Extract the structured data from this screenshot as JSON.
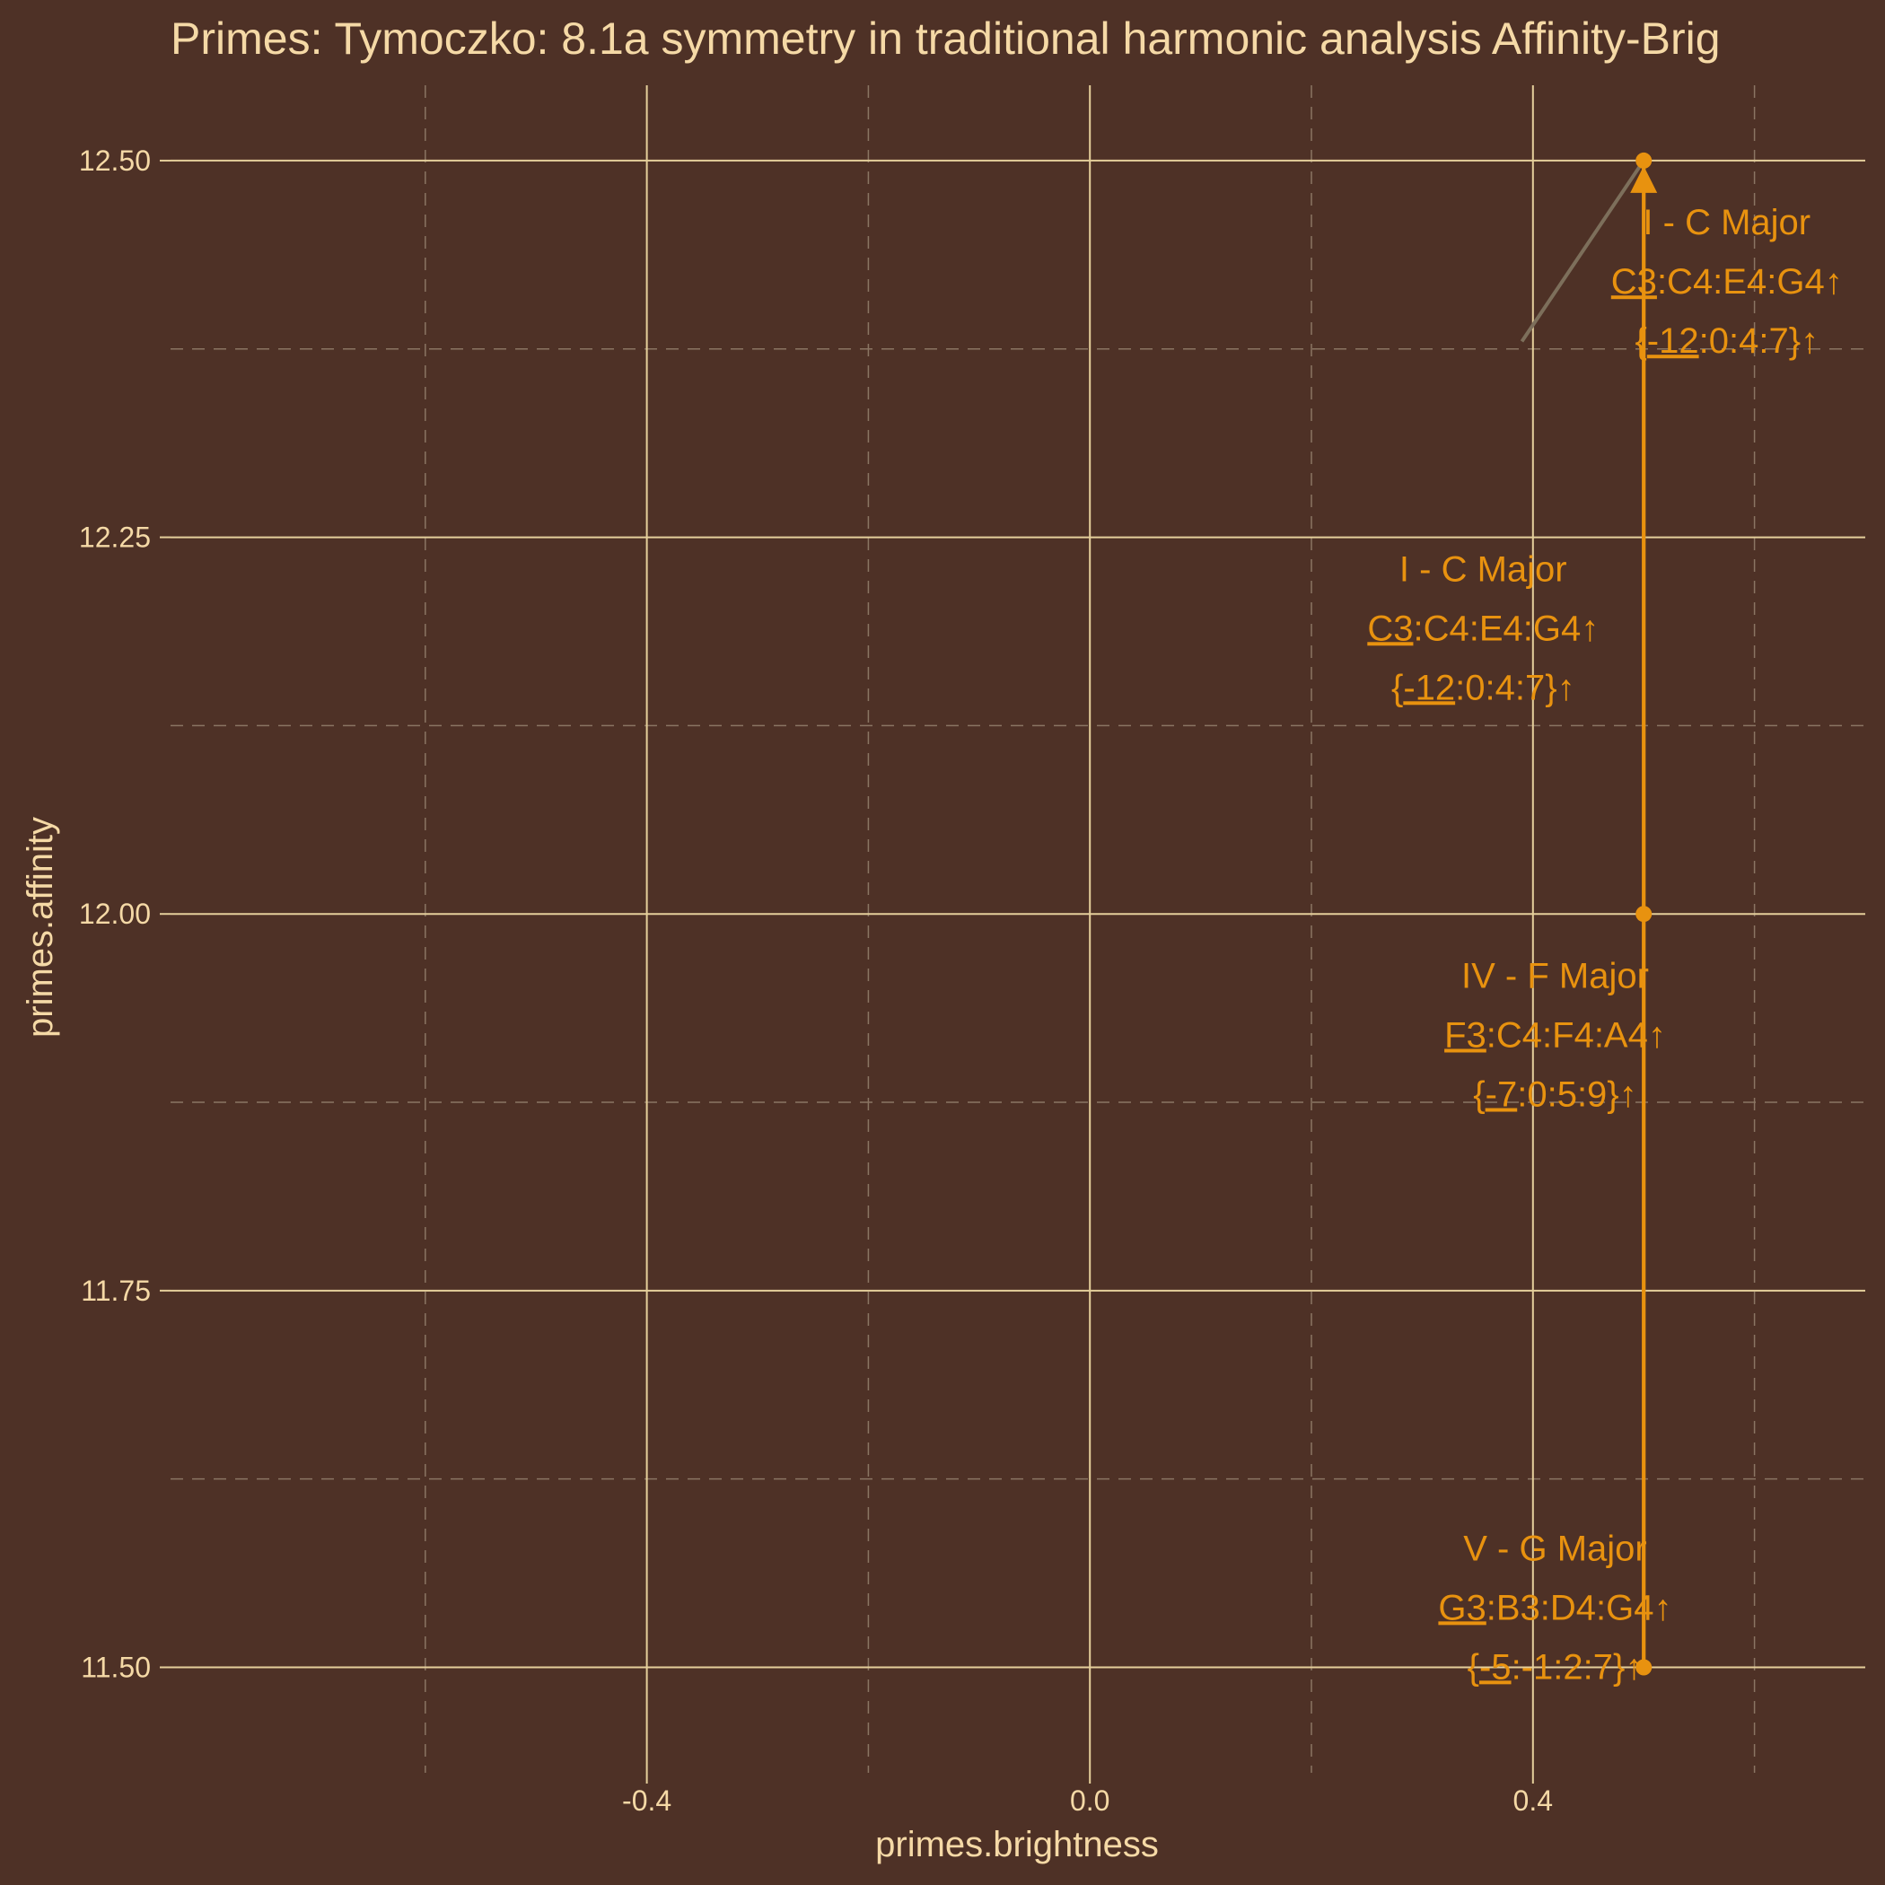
{
  "chart_data": {
    "type": "scatter",
    "title": "Primes: Tymoczko: 8.1a symmetry in traditional harmonic analysis Affinity-Brig",
    "xlabel": "primes.brightness",
    "ylabel": "primes.affinity",
    "xlim": [
      -0.83,
      0.7
    ],
    "ylim": [
      11.43,
      12.55
    ],
    "x_major_ticks": [
      -0.4,
      0.0,
      0.4
    ],
    "x_tick_labels": [
      "-0.4",
      "0.0",
      "0.4"
    ],
    "x_minor_ticks": [
      -0.6,
      -0.2,
      0.2,
      0.6
    ],
    "y_major_ticks": [
      11.5,
      11.75,
      12.0,
      12.25,
      12.5
    ],
    "y_tick_labels": [
      "11.50",
      "11.75",
      "12.00",
      "12.25",
      "12.50"
    ],
    "y_minor_ticks": [
      11.625,
      11.875,
      12.125,
      12.375
    ],
    "grid": true,
    "points": [
      {
        "x": 0.5,
        "y": 12.5
      },
      {
        "x": 0.5,
        "y": 12.0
      },
      {
        "x": 0.5,
        "y": 11.5
      }
    ],
    "path": [
      {
        "x": 0.5,
        "y": 12.5
      },
      {
        "x": 0.5,
        "y": 12.0
      },
      {
        "x": 0.5,
        "y": 11.5
      },
      {
        "x": 0.5,
        "y": 12.5
      }
    ],
    "labels": [
      {
        "x": 0.575,
        "y": 12.42,
        "color": "#e8920f",
        "lines": [
          {
            "pre": "",
            "u": "",
            "post": "I  - C Major"
          },
          {
            "pre": "",
            "u": "C3",
            "post": ":C4:E4:G4↑"
          },
          {
            "pre": "{",
            "u": "-12",
            "post": ":0:4:7}↑"
          }
        ]
      },
      {
        "x": 0.355,
        "y": 12.19,
        "color": "#e8920f",
        "lines": [
          {
            "pre": "",
            "u": "",
            "post": "I  - C Major"
          },
          {
            "pre": "",
            "u": "C3",
            "post": ":C4:E4:G4↑"
          },
          {
            "pre": "{",
            "u": "-12",
            "post": ":0:4:7}↑"
          }
        ]
      },
      {
        "x": 0.42,
        "y": 11.92,
        "color": "#e8920f",
        "lines": [
          {
            "pre": "",
            "u": "",
            "post": "IV - F Major"
          },
          {
            "pre": "",
            "u": "F3",
            "post": ":C4:F4:A4↑"
          },
          {
            "pre": "{",
            "u": "-7",
            "post": ":0:5:9}↑"
          }
        ]
      },
      {
        "x": 0.42,
        "y": 11.54,
        "color": "#e8920f",
        "lines": [
          {
            "pre": "",
            "u": "",
            "post": "V  - G Major"
          },
          {
            "pre": "",
            "u": "G3",
            "post": ":B3:D4:G4↑"
          },
          {
            "pre": "{",
            "u": "-5",
            "post": ":-1:2:7}↑"
          }
        ]
      }
    ],
    "leader_lines": [
      {
        "from": {
          "x": 0.39,
          "y": 12.38
        },
        "to": {
          "x": 0.5,
          "y": 12.5
        }
      }
    ],
    "colors": {
      "background": "#4e3126",
      "text": "#f5d9a6",
      "series": "#e8920f",
      "grid_major": "#e5cf9b",
      "grid_minor": "#8a7563",
      "leader": "#7d6f5b"
    }
  }
}
